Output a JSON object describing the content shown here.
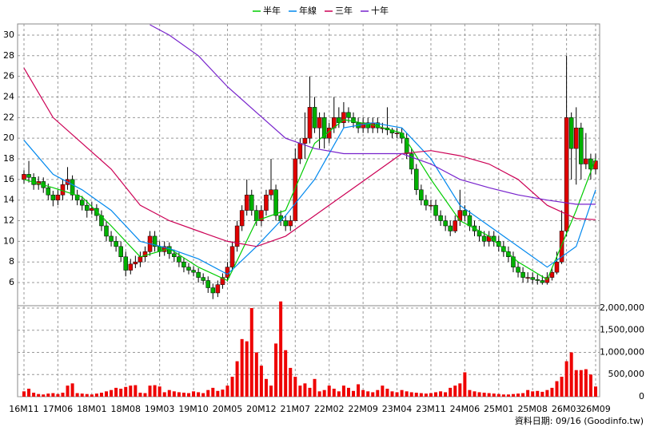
{
  "chart_data": {
    "type": "candlestick",
    "xlim": [
      -1.32,
      118.83
    ],
    "xticks": [
      {
        "value": 0,
        "label": "16M11"
      },
      {
        "value": 7,
        "label": "17M06"
      },
      {
        "value": 14,
        "label": "18M01"
      },
      {
        "value": 21,
        "label": "18M08"
      },
      {
        "value": 28,
        "label": "19M03"
      },
      {
        "value": 35,
        "label": "19M10"
      },
      {
        "value": 42,
        "label": "20M05"
      },
      {
        "value": 49,
        "label": "20M12"
      },
      {
        "value": 56,
        "label": "21M07"
      },
      {
        "value": 63,
        "label": "22M02"
      },
      {
        "value": 70,
        "label": "22M09"
      },
      {
        "value": 77,
        "label": "23M04"
      },
      {
        "value": 84,
        "label": "23M11"
      },
      {
        "value": 91,
        "label": "24M06"
      },
      {
        "value": 98,
        "label": "25M01"
      },
      {
        "value": 105,
        "label": "25M08"
      },
      {
        "value": 112,
        "label": "26M03"
      },
      {
        "value": 118,
        "label": "26M09"
      }
    ],
    "ylim": [
      3.76,
      31.08
    ],
    "yticks": [
      6,
      8,
      10,
      12,
      14,
      16,
      18,
      20,
      22,
      24,
      26,
      28,
      30
    ],
    "grid": true,
    "up_color": "#e00000",
    "down_color": "#00b000",
    "ohlc": [
      [
        16.0,
        16.9,
        15.6,
        16.5
      ],
      [
        16.5,
        17.8,
        15.7,
        16.2
      ],
      [
        16.2,
        16.6,
        15.0,
        15.5
      ],
      [
        15.5,
        16.3,
        15.0,
        15.8
      ],
      [
        15.8,
        16.2,
        14.7,
        15.2
      ],
      [
        15.2,
        15.6,
        14.0,
        14.5
      ],
      [
        14.5,
        14.9,
        13.4,
        14.0
      ],
      [
        14.0,
        15.0,
        13.5,
        14.5
      ],
      [
        14.5,
        16.0,
        14.0,
        15.5
      ],
      [
        15.5,
        17.2,
        15.0,
        16.0
      ],
      [
        16.0,
        16.4,
        14.0,
        14.5
      ],
      [
        14.5,
        15.0,
        13.5,
        14.0
      ],
      [
        14.0,
        14.4,
        13.0,
        13.5
      ],
      [
        13.5,
        14.0,
        12.3,
        13.0
      ],
      [
        13.0,
        13.8,
        12.6,
        13.2
      ],
      [
        13.2,
        13.6,
        12.0,
        12.5
      ],
      [
        12.5,
        13.0,
        11.0,
        11.5
      ],
      [
        11.5,
        12.0,
        10.0,
        10.5
      ],
      [
        10.5,
        11.0,
        9.5,
        10.0
      ],
      [
        10.0,
        10.5,
        9.0,
        9.5
      ],
      [
        9.5,
        10.0,
        8.0,
        8.5
      ],
      [
        8.5,
        9.0,
        6.6,
        7.2
      ],
      [
        7.2,
        8.3,
        6.8,
        7.8
      ],
      [
        7.8,
        8.6,
        7.4,
        8.0
      ],
      [
        8.0,
        9.0,
        7.5,
        8.5
      ],
      [
        8.5,
        9.5,
        8.0,
        9.0
      ],
      [
        9.0,
        11.0,
        8.6,
        10.5
      ],
      [
        10.5,
        11.0,
        9.0,
        9.5
      ],
      [
        9.5,
        10.0,
        8.5,
        9.0
      ],
      [
        9.0,
        10.0,
        8.6,
        9.5
      ],
      [
        9.5,
        9.9,
        8.3,
        8.8
      ],
      [
        8.8,
        9.2,
        8.0,
        8.5
      ],
      [
        8.5,
        8.9,
        7.5,
        8.0
      ],
      [
        8.0,
        8.4,
        7.0,
        7.5
      ],
      [
        7.5,
        7.9,
        6.8,
        7.2
      ],
      [
        7.2,
        7.6,
        6.6,
        7.0
      ],
      [
        7.0,
        7.4,
        6.0,
        6.5
      ],
      [
        6.5,
        6.9,
        5.8,
        6.2
      ],
      [
        6.2,
        6.6,
        5.0,
        5.5
      ],
      [
        5.5,
        5.9,
        4.4,
        5.0
      ],
      [
        5.0,
        6.2,
        4.6,
        5.8
      ],
      [
        5.8,
        6.9,
        5.4,
        6.5
      ],
      [
        6.5,
        8.0,
        6.1,
        7.5
      ],
      [
        7.5,
        10.0,
        7.2,
        9.5
      ],
      [
        9.5,
        12.0,
        9.0,
        11.5
      ],
      [
        11.5,
        13.5,
        11.0,
        13.0
      ],
      [
        13.0,
        16.0,
        12.5,
        14.5
      ],
      [
        14.5,
        15.0,
        12.5,
        13.0
      ],
      [
        13.0,
        13.5,
        11.5,
        12.0
      ],
      [
        12.0,
        13.5,
        11.5,
        13.0
      ],
      [
        13.0,
        15.0,
        12.5,
        14.5
      ],
      [
        14.5,
        18.0,
        14.0,
        15.0
      ],
      [
        15.0,
        15.5,
        12.0,
        12.5
      ],
      [
        12.5,
        13.0,
        11.5,
        12.0
      ],
      [
        12.0,
        12.5,
        11.0,
        11.5
      ],
      [
        11.5,
        12.5,
        11.0,
        12.0
      ],
      [
        12.0,
        19.0,
        12.0,
        18.0
      ],
      [
        18.0,
        20.0,
        17.5,
        19.5
      ],
      [
        19.5,
        22.5,
        18.0,
        20.0
      ],
      [
        20.0,
        26.0,
        19.5,
        23.0
      ],
      [
        23.0,
        24.0,
        20.5,
        21.0
      ],
      [
        21.0,
        22.5,
        19.0,
        22.0
      ],
      [
        22.0,
        22.5,
        19.0,
        20.0
      ],
      [
        20.0,
        21.5,
        19.5,
        21.0
      ],
      [
        21.0,
        24.0,
        20.5,
        22.0
      ],
      [
        22.0,
        23.0,
        21.0,
        21.5
      ],
      [
        21.5,
        23.5,
        21.0,
        22.5
      ],
      [
        22.5,
        23.0,
        21.5,
        22.0
      ],
      [
        22.0,
        22.5,
        21.0,
        21.5
      ],
      [
        21.5,
        22.0,
        20.5,
        21.0
      ],
      [
        21.0,
        22.0,
        20.5,
        21.5
      ],
      [
        21.5,
        22.0,
        20.5,
        21.0
      ],
      [
        21.0,
        22.0,
        20.5,
        21.5
      ],
      [
        21.5,
        22.0,
        20.5,
        21.0
      ],
      [
        21.0,
        21.5,
        20.5,
        21.0
      ],
      [
        21.0,
        23.0,
        20.3,
        20.8
      ],
      [
        20.8,
        21.0,
        20.0,
        20.5
      ],
      [
        20.5,
        21.0,
        20.0,
        20.5
      ],
      [
        20.5,
        21.0,
        19.5,
        20.0
      ],
      [
        20.0,
        20.5,
        18.0,
        18.5
      ],
      [
        18.5,
        19.0,
        16.5,
        17.0
      ],
      [
        17.0,
        17.5,
        14.5,
        15.0
      ],
      [
        15.0,
        15.5,
        13.5,
        14.0
      ],
      [
        14.0,
        14.5,
        13.0,
        13.5
      ],
      [
        13.5,
        14.0,
        13.0,
        13.5
      ],
      [
        13.5,
        14.0,
        12.0,
        12.5
      ],
      [
        12.5,
        13.0,
        11.5,
        12.0
      ],
      [
        12.0,
        12.5,
        11.0,
        11.5
      ],
      [
        11.5,
        12.0,
        10.5,
        11.0
      ],
      [
        11.0,
        12.5,
        10.8,
        12.0
      ],
      [
        12.0,
        15.0,
        11.5,
        13.0
      ],
      [
        13.0,
        13.5,
        12.0,
        12.5
      ],
      [
        12.5,
        13.0,
        11.0,
        11.5
      ],
      [
        11.5,
        12.0,
        10.5,
        11.0
      ],
      [
        11.0,
        11.5,
        10.0,
        10.5
      ],
      [
        10.5,
        11.0,
        9.5,
        10.0
      ],
      [
        10.0,
        11.0,
        9.5,
        10.5
      ],
      [
        10.5,
        11.0,
        9.5,
        10.0
      ],
      [
        10.0,
        10.5,
        9.0,
        9.5
      ],
      [
        9.5,
        10.0,
        8.5,
        9.0
      ],
      [
        9.0,
        9.5,
        8.0,
        8.5
      ],
      [
        8.5,
        9.0,
        7.0,
        7.5
      ],
      [
        7.5,
        8.0,
        6.5,
        7.0
      ],
      [
        7.0,
        7.5,
        6.0,
        6.5
      ],
      [
        6.5,
        7.0,
        6.0,
        6.5
      ],
      [
        6.5,
        7.0,
        5.9,
        6.3
      ],
      [
        6.3,
        6.8,
        5.8,
        6.2
      ],
      [
        6.2,
        6.7,
        5.8,
        6.0
      ],
      [
        6.0,
        7.0,
        5.8,
        6.5
      ],
      [
        6.5,
        7.5,
        6.2,
        7.0
      ],
      [
        7.0,
        9.0,
        6.8,
        8.0
      ],
      [
        8.0,
        13.0,
        7.8,
        11.0
      ],
      [
        11.0,
        28.0,
        10.5,
        22.0
      ],
      [
        22.0,
        22.5,
        16.0,
        19.0
      ],
      [
        19.0,
        23.0,
        15.5,
        21.0
      ],
      [
        21.0,
        21.5,
        16.0,
        17.5
      ],
      [
        17.5,
        20.5,
        17.0,
        18.0
      ],
      [
        18.0,
        18.5,
        16.0,
        17.0
      ],
      [
        17.0,
        18.5,
        16.5,
        17.8
      ]
    ],
    "series": [
      {
        "name": "半年",
        "color": "#00cc00",
        "x": [
          0,
          6,
          12,
          18,
          24,
          30,
          36,
          42,
          48,
          54,
          60,
          66,
          72,
          78,
          84,
          90,
          96,
          102,
          108,
          114,
          118
        ],
        "values": [
          16,
          15.2,
          14.3,
          11.5,
          8.5,
          9.3,
          7.5,
          6.2,
          12,
          13,
          19.5,
          21.8,
          21.3,
          20.5,
          16,
          12,
          10.5,
          8,
          6.3,
          13,
          18
        ]
      },
      {
        "name": "年線",
        "color": "#0088ee",
        "x": [
          0,
          6,
          12,
          18,
          24,
          30,
          36,
          42,
          48,
          54,
          60,
          66,
          72,
          78,
          84,
          90,
          96,
          102,
          108,
          114,
          118
        ],
        "values": [
          19.8,
          16.5,
          15,
          13,
          10,
          9.3,
          8.3,
          6.8,
          9.5,
          12.5,
          16,
          21,
          21.5,
          21,
          18,
          13.5,
          11.5,
          9.5,
          7.5,
          9.5,
          15
        ]
      },
      {
        "name": "三年",
        "color": "#cc0055",
        "x": [
          0,
          6,
          12,
          18,
          24,
          30,
          36,
          42,
          48,
          54,
          60,
          66,
          72,
          78,
          84,
          90,
          96,
          102,
          108,
          114,
          118
        ],
        "values": [
          26.8,
          22,
          19.5,
          17,
          13.5,
          12,
          11,
          10,
          9.5,
          10.5,
          12.5,
          14.5,
          16.5,
          18.5,
          18.8,
          18.3,
          17.5,
          16,
          13.5,
          12.2,
          12.1
        ]
      },
      {
        "name": "十年",
        "color": "#7722cc",
        "x": [
          26,
          30,
          36,
          42,
          48,
          54,
          60,
          66,
          72,
          78,
          84,
          90,
          96,
          102,
          108,
          114,
          118
        ],
        "values": [
          31,
          30,
          28,
          25,
          22.5,
          20,
          19,
          18.5,
          18.5,
          18.5,
          17.5,
          16,
          15.2,
          14.5,
          14,
          13.6,
          13.6
        ]
      }
    ],
    "volume": {
      "color": "#ee0000",
      "ylim": [
        0,
        2054000
      ],
      "yticks": [
        0,
        {
          "value": 500000,
          "label": "500,000"
        },
        {
          "value": 1000000,
          "label": "1,000,000"
        },
        {
          "value": 1500000,
          "label": "1,500,000"
        },
        {
          "value": 2000000,
          "label": "2,000,000"
        }
      ],
      "values": [
        120000,
        180000,
        90000,
        60000,
        50000,
        70000,
        80000,
        60000,
        90000,
        250000,
        300000,
        80000,
        70000,
        60000,
        50000,
        70000,
        90000,
        120000,
        150000,
        200000,
        180000,
        220000,
        250000,
        260000,
        90000,
        80000,
        250000,
        260000,
        230000,
        100000,
        150000,
        120000,
        100000,
        90000,
        80000,
        120000,
        100000,
        80000,
        150000,
        200000,
        130000,
        160000,
        250000,
        450000,
        800000,
        1300000,
        1250000,
        2000000,
        1000000,
        700000,
        400000,
        250000,
        1200000,
        2150000,
        1050000,
        650000,
        450000,
        250000,
        300000,
        200000,
        400000,
        120000,
        150000,
        250000,
        180000,
        120000,
        250000,
        200000,
        130000,
        280000,
        150000,
        120000,
        100000,
        150000,
        250000,
        180000,
        120000,
        100000,
        150000,
        120000,
        100000,
        90000,
        80000,
        70000,
        80000,
        100000,
        120000,
        100000,
        200000,
        250000,
        300000,
        550000,
        150000,
        120000,
        100000,
        90000,
        80000,
        70000,
        60000,
        50000,
        50000,
        60000,
        70000,
        80000,
        150000,
        120000,
        130000,
        110000,
        150000,
        200000,
        350000,
        450000,
        800000,
        1000000,
        600000,
        600000,
        620000,
        500000,
        230000
      ]
    },
    "source": "資料日期: 09/16 (Goodinfo.tw)"
  }
}
